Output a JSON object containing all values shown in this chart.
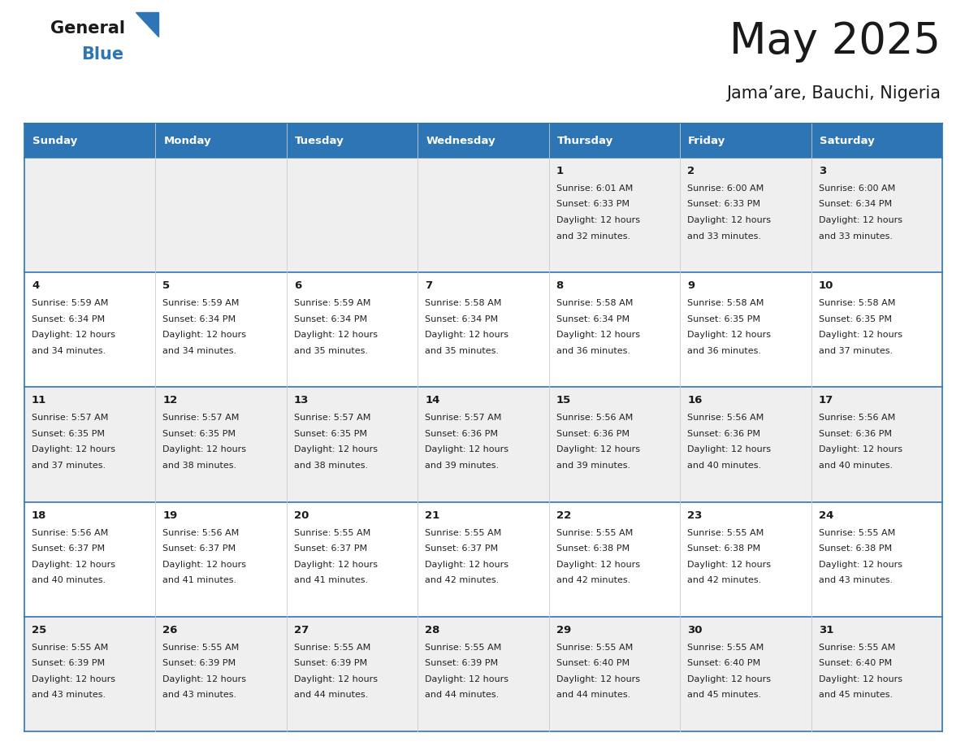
{
  "title": "May 2025",
  "subtitle": "Jama’are, Bauchi, Nigeria",
  "header_bg": "#2E75B6",
  "header_text": "#FFFFFF",
  "day_names": [
    "Sunday",
    "Monday",
    "Tuesday",
    "Wednesday",
    "Thursday",
    "Friday",
    "Saturday"
  ],
  "weeks": [
    [
      {
        "day": "",
        "sunrise": "",
        "sunset": "",
        "daylight": ""
      },
      {
        "day": "",
        "sunrise": "",
        "sunset": "",
        "daylight": ""
      },
      {
        "day": "",
        "sunrise": "",
        "sunset": "",
        "daylight": ""
      },
      {
        "day": "",
        "sunrise": "",
        "sunset": "",
        "daylight": ""
      },
      {
        "day": "1",
        "sunrise": "6:01 AM",
        "sunset": "6:33 PM",
        "daylight": "12 hours and 32 minutes."
      },
      {
        "day": "2",
        "sunrise": "6:00 AM",
        "sunset": "6:33 PM",
        "daylight": "12 hours and 33 minutes."
      },
      {
        "day": "3",
        "sunrise": "6:00 AM",
        "sunset": "6:34 PM",
        "daylight": "12 hours and 33 minutes."
      }
    ],
    [
      {
        "day": "4",
        "sunrise": "5:59 AM",
        "sunset": "6:34 PM",
        "daylight": "12 hours and 34 minutes."
      },
      {
        "day": "5",
        "sunrise": "5:59 AM",
        "sunset": "6:34 PM",
        "daylight": "12 hours and 34 minutes."
      },
      {
        "day": "6",
        "sunrise": "5:59 AM",
        "sunset": "6:34 PM",
        "daylight": "12 hours and 35 minutes."
      },
      {
        "day": "7",
        "sunrise": "5:58 AM",
        "sunset": "6:34 PM",
        "daylight": "12 hours and 35 minutes."
      },
      {
        "day": "8",
        "sunrise": "5:58 AM",
        "sunset": "6:34 PM",
        "daylight": "12 hours and 36 minutes."
      },
      {
        "day": "9",
        "sunrise": "5:58 AM",
        "sunset": "6:35 PM",
        "daylight": "12 hours and 36 minutes."
      },
      {
        "day": "10",
        "sunrise": "5:58 AM",
        "sunset": "6:35 PM",
        "daylight": "12 hours and 37 minutes."
      }
    ],
    [
      {
        "day": "11",
        "sunrise": "5:57 AM",
        "sunset": "6:35 PM",
        "daylight": "12 hours and 37 minutes."
      },
      {
        "day": "12",
        "sunrise": "5:57 AM",
        "sunset": "6:35 PM",
        "daylight": "12 hours and 38 minutes."
      },
      {
        "day": "13",
        "sunrise": "5:57 AM",
        "sunset": "6:35 PM",
        "daylight": "12 hours and 38 minutes."
      },
      {
        "day": "14",
        "sunrise": "5:57 AM",
        "sunset": "6:36 PM",
        "daylight": "12 hours and 39 minutes."
      },
      {
        "day": "15",
        "sunrise": "5:56 AM",
        "sunset": "6:36 PM",
        "daylight": "12 hours and 39 minutes."
      },
      {
        "day": "16",
        "sunrise": "5:56 AM",
        "sunset": "6:36 PM",
        "daylight": "12 hours and 40 minutes."
      },
      {
        "day": "17",
        "sunrise": "5:56 AM",
        "sunset": "6:36 PM",
        "daylight": "12 hours and 40 minutes."
      }
    ],
    [
      {
        "day": "18",
        "sunrise": "5:56 AM",
        "sunset": "6:37 PM",
        "daylight": "12 hours and 40 minutes."
      },
      {
        "day": "19",
        "sunrise": "5:56 AM",
        "sunset": "6:37 PM",
        "daylight": "12 hours and 41 minutes."
      },
      {
        "day": "20",
        "sunrise": "5:55 AM",
        "sunset": "6:37 PM",
        "daylight": "12 hours and 41 minutes."
      },
      {
        "day": "21",
        "sunrise": "5:55 AM",
        "sunset": "6:37 PM",
        "daylight": "12 hours and 42 minutes."
      },
      {
        "day": "22",
        "sunrise": "5:55 AM",
        "sunset": "6:38 PM",
        "daylight": "12 hours and 42 minutes."
      },
      {
        "day": "23",
        "sunrise": "5:55 AM",
        "sunset": "6:38 PM",
        "daylight": "12 hours and 42 minutes."
      },
      {
        "day": "24",
        "sunrise": "5:55 AM",
        "sunset": "6:38 PM",
        "daylight": "12 hours and 43 minutes."
      }
    ],
    [
      {
        "day": "25",
        "sunrise": "5:55 AM",
        "sunset": "6:39 PM",
        "daylight": "12 hours and 43 minutes."
      },
      {
        "day": "26",
        "sunrise": "5:55 AM",
        "sunset": "6:39 PM",
        "daylight": "12 hours and 43 minutes."
      },
      {
        "day": "27",
        "sunrise": "5:55 AM",
        "sunset": "6:39 PM",
        "daylight": "12 hours and 44 minutes."
      },
      {
        "day": "28",
        "sunrise": "5:55 AM",
        "sunset": "6:39 PM",
        "daylight": "12 hours and 44 minutes."
      },
      {
        "day": "29",
        "sunrise": "5:55 AM",
        "sunset": "6:40 PM",
        "daylight": "12 hours and 44 minutes."
      },
      {
        "day": "30",
        "sunrise": "5:55 AM",
        "sunset": "6:40 PM",
        "daylight": "12 hours and 45 minutes."
      },
      {
        "day": "31",
        "sunrise": "5:55 AM",
        "sunset": "6:40 PM",
        "daylight": "12 hours and 45 minutes."
      }
    ]
  ],
  "header_color": "#2E75B6",
  "divider_color": "#2E75B6",
  "row_bg_odd": "#EFEFEF",
  "row_bg_even": "#FFFFFF"
}
